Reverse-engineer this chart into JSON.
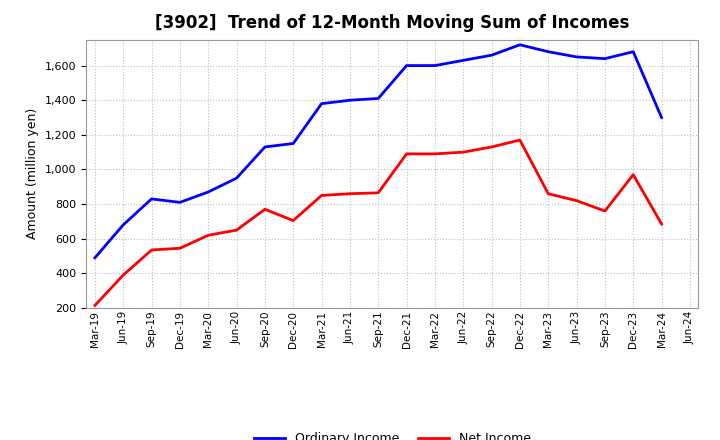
{
  "title": "[3902]  Trend of 12-Month Moving Sum of Incomes",
  "ylabel": "Amount (million yen)",
  "x_labels": [
    "Mar-19",
    "Jun-19",
    "Sep-19",
    "Dec-19",
    "Mar-20",
    "Jun-20",
    "Sep-20",
    "Dec-20",
    "Mar-21",
    "Jun-21",
    "Sep-21",
    "Dec-21",
    "Mar-22",
    "Jun-22",
    "Sep-22",
    "Dec-22",
    "Mar-23",
    "Jun-23",
    "Sep-23",
    "Dec-23",
    "Mar-24",
    "Jun-24"
  ],
  "ordinary_income": [
    490,
    680,
    830,
    810,
    870,
    950,
    1130,
    1150,
    1380,
    1400,
    1410,
    1600,
    1600,
    1630,
    1660,
    1720,
    1680,
    1650,
    1640,
    1680,
    1300,
    null
  ],
  "net_income": [
    215,
    390,
    535,
    545,
    620,
    650,
    770,
    705,
    850,
    860,
    865,
    1090,
    1090,
    1100,
    1130,
    1170,
    860,
    820,
    760,
    970,
    685,
    null
  ],
  "ylim": [
    200,
    1750
  ],
  "yticks": [
    200,
    400,
    600,
    800,
    1000,
    1200,
    1400,
    1600
  ],
  "line_blue": "#0000ff",
  "line_red": "#ff0000",
  "background_color": "#ffffff",
  "grid_color": "#bbbbcc",
  "title_fontsize": 12,
  "legend_labels": [
    "Ordinary Income",
    "Net Income"
  ]
}
